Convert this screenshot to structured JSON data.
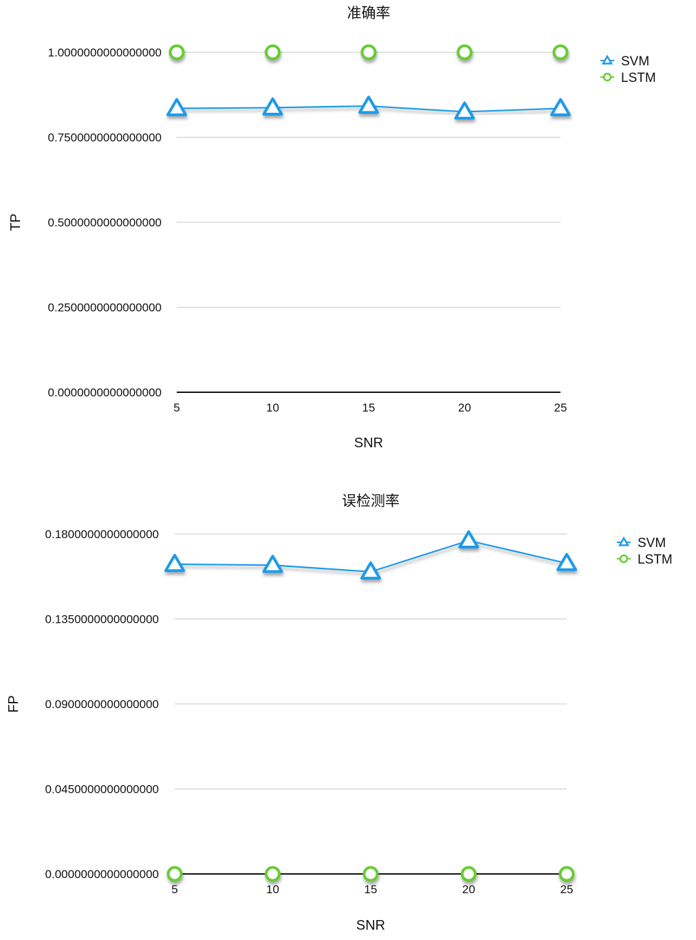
{
  "chart_data": [
    {
      "type": "line",
      "title": "准确率",
      "xlabel": "SNR",
      "ylabel": "TP",
      "x": [
        5,
        10,
        15,
        20,
        25
      ],
      "xtick_labels": [
        "5",
        "10",
        "15",
        "20",
        "25"
      ],
      "ylim": [
        0,
        1
      ],
      "ytick_labels": [
        "0.0000000000000000",
        "0.2500000000000000",
        "0.5000000000000000",
        "0.7500000000000000",
        "1.0000000000000000"
      ],
      "grid": true,
      "legend_position": "right",
      "series": [
        {
          "name": "SVM",
          "marker": "triangle",
          "color": "#1e9be8",
          "values": [
            0.835,
            0.837,
            0.842,
            0.825,
            0.835
          ]
        },
        {
          "name": "LSTM",
          "marker": "circle",
          "color": "#66cc33",
          "values": [
            1.0,
            1.0,
            1.0,
            1.0,
            1.0
          ]
        }
      ]
    },
    {
      "type": "line",
      "title": "误检测率",
      "xlabel": "SNR",
      "ylabel": "FP",
      "x": [
        5,
        10,
        15,
        20,
        25
      ],
      "xtick_labels": [
        "5",
        "10",
        "15",
        "20",
        "25"
      ],
      "ylim": [
        0,
        0.18
      ],
      "ytick_labels": [
        "0.0000000000000000",
        "0.0450000000000000",
        "0.0900000000000000",
        "0.1350000000000000",
        "0.1800000000000000"
      ],
      "grid": true,
      "legend_position": "right",
      "series": [
        {
          "name": "SVM",
          "marker": "triangle",
          "color": "#1e9be8",
          "values": [
            0.164,
            0.1635,
            0.16,
            0.1765,
            0.1645
          ]
        },
        {
          "name": "LSTM",
          "marker": "circle",
          "color": "#66cc33",
          "values": [
            0,
            0,
            0,
            0,
            0
          ]
        }
      ]
    }
  ]
}
